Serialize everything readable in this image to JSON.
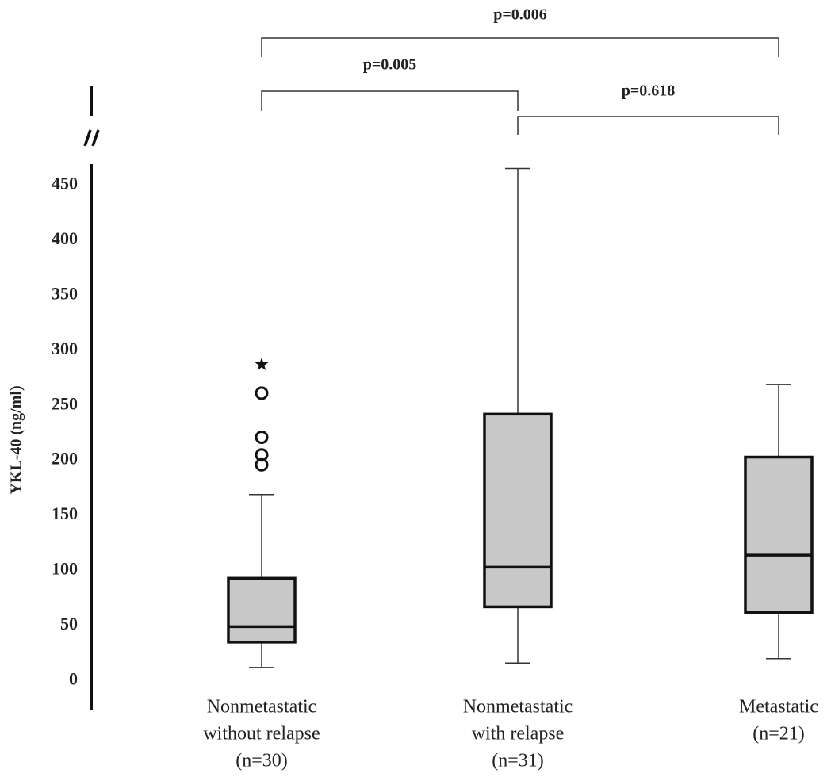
{
  "chart_data": {
    "type": "box",
    "y_label": "YKL-40 (ng/ml)",
    "categories": [
      [
        "Nonmetastatic",
        "without relapse",
        "(n=30)"
      ],
      [
        "Nonmetastatic",
        "with relapse",
        "(n=31)"
      ],
      [
        "Metastatic",
        "(n=21)"
      ]
    ],
    "boxes": [
      {
        "low": 12,
        "q1": 35,
        "median": 49,
        "q3": 93,
        "high": 169,
        "outliers": [
          196,
          205,
          221,
          261
        ],
        "extremes": [
          287
        ]
      },
      {
        "low": 16,
        "q1": 67,
        "median": 103,
        "q3": 242,
        "high": 465,
        "outliers": [],
        "extremes": []
      },
      {
        "low": 20,
        "q1": 62,
        "median": 114,
        "q3": 203,
        "high": 269,
        "outliers": [],
        "extremes": []
      }
    ],
    "color": "#c8c8c8",
    "ylim": [
      -27,
      469
    ],
    "yticks": [
      0,
      50,
      100,
      150,
      200,
      250,
      300,
      350,
      400,
      450
    ],
    "grid": false,
    "annotations": [
      "p=0.006",
      "p=0.005",
      "p=0.618"
    ]
  }
}
